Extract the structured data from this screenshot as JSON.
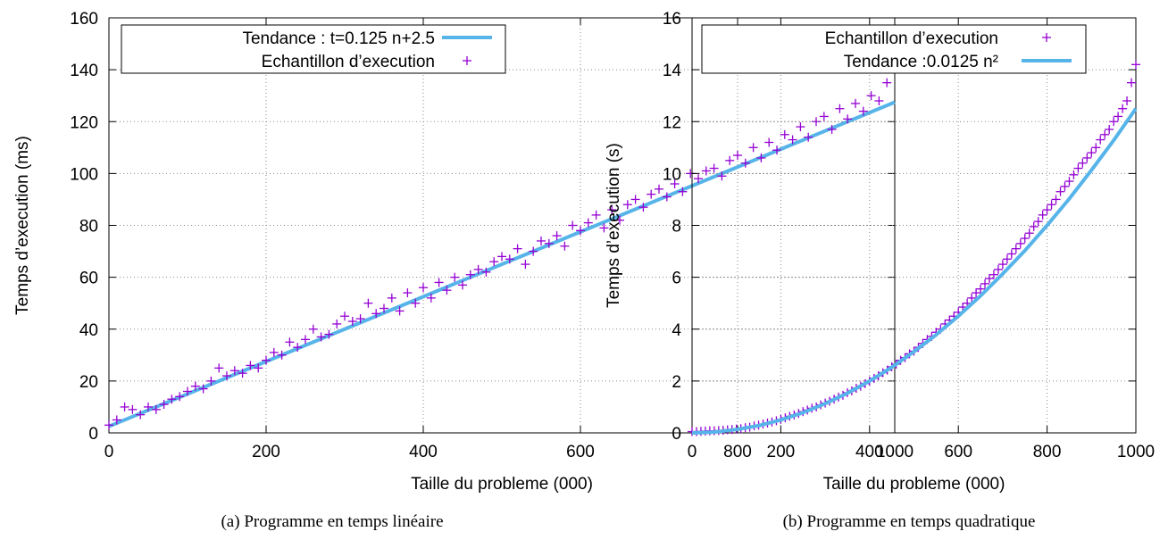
{
  "chart_data": [
    {
      "type": "scatter",
      "caption": "(a)  Programme en temps linéaire",
      "xlabel": "Taille du probleme (000)",
      "ylabel": "Temps d’execution (ms)",
      "xlim": [
        0,
        1000
      ],
      "ylim": [
        0,
        160
      ],
      "xticks": [
        "0",
        "200",
        "400",
        "600",
        "800",
        "1000"
      ],
      "yticks": [
        "0",
        "20",
        "40",
        "60",
        "80",
        "100",
        "120",
        "140",
        "160"
      ],
      "grid": true,
      "legend_position": "top",
      "colors": {
        "trend": "#56b4e9",
        "samples": "#9400d3"
      },
      "series": [
        {
          "name": "Tendance : t=0.125 n+2.5",
          "kind": "line",
          "color": "#56b4e9",
          "x": [
            0,
            1000
          ],
          "y": [
            2.5,
            127.5
          ]
        },
        {
          "name": "Echantillon d’execution",
          "kind": "points",
          "marker": "+",
          "color": "#9400d3",
          "x": [
            0,
            10,
            20,
            30,
            40,
            50,
            60,
            70,
            80,
            90,
            100,
            110,
            120,
            130,
            140,
            150,
            160,
            170,
            180,
            190,
            200,
            210,
            220,
            230,
            240,
            250,
            260,
            270,
            280,
            290,
            300,
            310,
            320,
            330,
            340,
            350,
            360,
            370,
            380,
            390,
            400,
            410,
            420,
            430,
            440,
            450,
            460,
            470,
            480,
            490,
            500,
            510,
            520,
            530,
            540,
            550,
            560,
            570,
            580,
            590,
            600,
            610,
            620,
            630,
            640,
            650,
            660,
            670,
            680,
            690,
            700,
            710,
            720,
            730,
            740,
            750,
            760,
            770,
            780,
            790,
            800,
            810,
            820,
            830,
            840,
            850,
            860,
            870,
            880,
            890,
            900,
            910,
            920,
            930,
            940,
            950,
            960,
            970,
            980,
            990,
            1000
          ],
          "y": [
            3,
            5,
            10,
            9,
            7,
            10,
            9,
            11,
            13,
            14,
            16,
            18,
            17,
            20,
            25,
            22,
            24,
            23,
            26,
            25,
            28,
            31,
            30,
            35,
            33,
            36,
            40,
            37,
            38,
            42,
            45,
            43,
            44,
            50,
            46,
            48,
            52,
            47,
            54,
            50,
            56,
            52,
            58,
            55,
            60,
            57,
            61,
            63,
            62,
            66,
            68,
            67,
            71,
            65,
            70,
            74,
            73,
            76,
            72,
            80,
            78,
            81,
            84,
            79,
            86,
            82,
            88,
            90,
            87,
            92,
            94,
            91,
            96,
            93,
            100,
            98,
            101,
            102,
            99,
            105,
            107,
            104,
            110,
            106,
            112,
            109,
            115,
            113,
            118,
            114,
            120,
            122,
            117,
            125,
            121,
            127,
            124,
            130,
            128,
            135,
            145
          ]
        }
      ]
    },
    {
      "type": "scatter",
      "caption": "(b)  Programme en temps quadratique",
      "xlabel": "Taille du probleme (000)",
      "ylabel": "Temps d’execution (s)",
      "xlim": [
        0,
        1000
      ],
      "ylim": [
        0,
        16
      ],
      "xticks": [
        "0",
        "200",
        "400",
        "600",
        "800",
        "1000"
      ],
      "yticks": [
        "0",
        "2",
        "4",
        "6",
        "8",
        "10",
        "12",
        "14",
        "16"
      ],
      "grid": true,
      "legend_position": "top",
      "colors": {
        "trend": "#56b4e9",
        "samples": "#9400d3"
      },
      "series": [
        {
          "name": "Echantillon d’execution",
          "kind": "points",
          "marker": "+",
          "color": "#9400d3",
          "x": [
            0,
            10,
            20,
            30,
            40,
            50,
            60,
            70,
            80,
            90,
            100,
            110,
            120,
            130,
            140,
            150,
            160,
            170,
            180,
            190,
            200,
            210,
            220,
            230,
            240,
            250,
            260,
            270,
            280,
            290,
            300,
            310,
            320,
            330,
            340,
            350,
            360,
            370,
            380,
            390,
            400,
            410,
            420,
            430,
            440,
            450,
            460,
            470,
            480,
            490,
            500,
            510,
            520,
            530,
            540,
            550,
            560,
            570,
            580,
            590,
            600,
            610,
            620,
            630,
            640,
            650,
            660,
            670,
            680,
            690,
            700,
            710,
            720,
            730,
            740,
            750,
            760,
            770,
            780,
            790,
            800,
            810,
            820,
            830,
            840,
            850,
            860,
            870,
            880,
            890,
            900,
            910,
            920,
            930,
            940,
            950,
            960,
            970,
            980,
            990,
            1000
          ],
          "y": [
            0.05,
            0.05,
            0.06,
            0.07,
            0.08,
            0.08,
            0.09,
            0.1,
            0.12,
            0.13,
            0.15,
            0.16,
            0.2,
            0.22,
            0.27,
            0.3,
            0.34,
            0.38,
            0.42,
            0.47,
            0.52,
            0.58,
            0.64,
            0.69,
            0.75,
            0.82,
            0.88,
            0.95,
            1.0,
            1.08,
            1.15,
            1.22,
            1.3,
            1.38,
            1.45,
            1.55,
            1.62,
            1.72,
            1.8,
            1.9,
            2.0,
            2.1,
            2.2,
            2.32,
            2.42,
            2.55,
            2.65,
            2.8,
            2.9,
            3.05,
            3.15,
            3.3,
            3.45,
            3.6,
            3.72,
            3.88,
            4.0,
            4.2,
            4.35,
            4.5,
            4.65,
            4.85,
            5.0,
            5.2,
            5.4,
            5.55,
            5.75,
            5.95,
            6.1,
            6.3,
            6.5,
            6.7,
            6.9,
            7.1,
            7.3,
            7.5,
            7.7,
            7.95,
            8.15,
            8.4,
            8.6,
            8.8,
            9.0,
            9.3,
            9.5,
            9.7,
            9.95,
            10.2,
            10.4,
            10.6,
            10.8,
            11.0,
            11.3,
            11.5,
            11.7,
            12.0,
            12.2,
            12.5,
            12.8,
            13.5,
            14.2
          ]
        },
        {
          "name": "Tendance :0.0125 n²",
          "kind": "curve",
          "color": "#56b4e9",
          "x": [
            0,
            50,
            100,
            150,
            200,
            250,
            300,
            350,
            400,
            450,
            500,
            550,
            600,
            650,
            700,
            750,
            800,
            850,
            900,
            950,
            1000
          ],
          "y": [
            0,
            0.03,
            0.13,
            0.28,
            0.5,
            0.78,
            1.13,
            1.53,
            2.0,
            2.53,
            3.13,
            3.78,
            4.5,
            5.28,
            6.13,
            7.03,
            8.0,
            9.03,
            10.13,
            11.28,
            12.5
          ]
        }
      ]
    }
  ]
}
